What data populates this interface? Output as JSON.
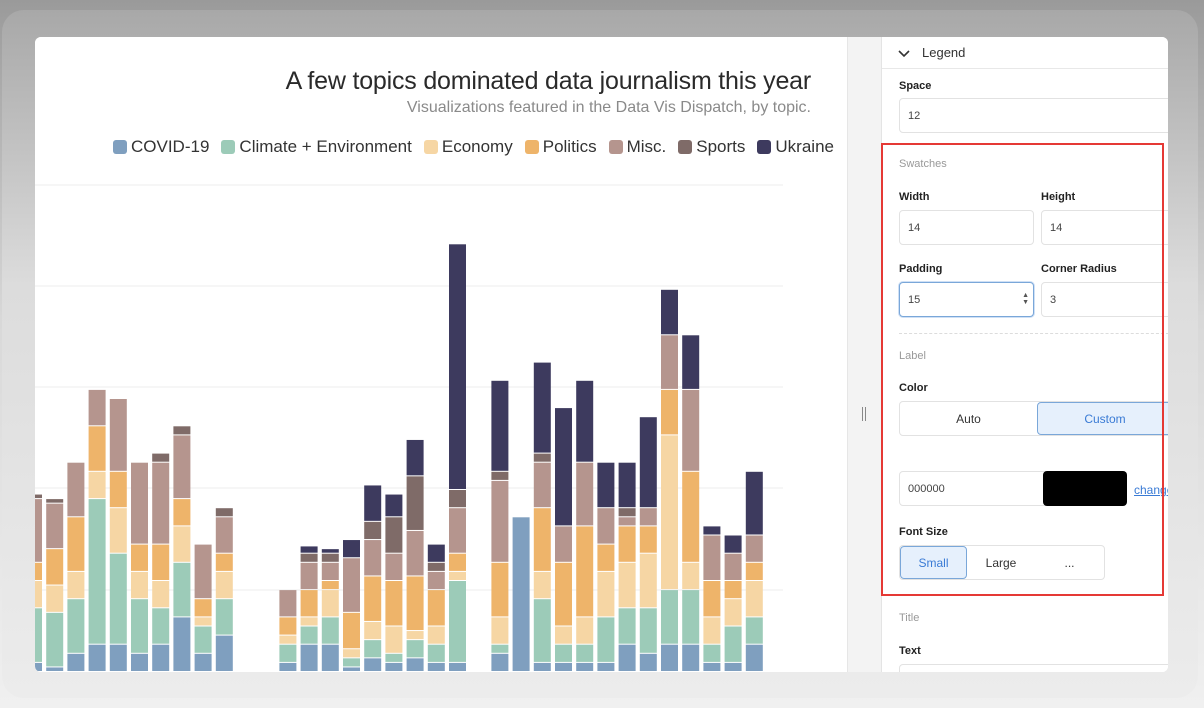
{
  "chart": {
    "title": "A few topics dominated data journalism this year",
    "subtitle": "Visualizations featured in the Data Vis Dispatch, by topic."
  },
  "legend_items": [
    {
      "label": "COVID-19",
      "color": "#7f9fbf"
    },
    {
      "label": "Climate + Environment",
      "color": "#9ccbb8"
    },
    {
      "label": "Economy",
      "color": "#f6d6a4"
    },
    {
      "label": "Politics",
      "color": "#eeb46a"
    },
    {
      "label": "Misc.",
      "color": "#b5958e"
    },
    {
      "label": "Sports",
      "color": "#7f6b68"
    },
    {
      "label": "Ukraine",
      "color": "#3d3a5e"
    }
  ],
  "chart_data": {
    "type": "bar",
    "stacked": true,
    "series_order": [
      "COVID-19",
      "Climate + Environment",
      "Economy",
      "Politics",
      "Misc.",
      "Sports",
      "Ukraine"
    ],
    "bars": [
      [
        1,
        6,
        3,
        2,
        7,
        0.5,
        0
      ],
      [
        0.5,
        6,
        3,
        4,
        5,
        0.5,
        0
      ],
      [
        2,
        6,
        3,
        6,
        6,
        0,
        0
      ],
      [
        3,
        16,
        3,
        5,
        4,
        0,
        0
      ],
      [
        3,
        10,
        5,
        4,
        8,
        0,
        0
      ],
      [
        2,
        6,
        3,
        3,
        9,
        0,
        0
      ],
      [
        3,
        4,
        3,
        4,
        9,
        1,
        0
      ],
      [
        6,
        6,
        4,
        3,
        7,
        1,
        0
      ],
      [
        2,
        3,
        1,
        2,
        6,
        0,
        0
      ],
      [
        4,
        4,
        3,
        2,
        4,
        1,
        0
      ],
      [
        0,
        0,
        0,
        0,
        0,
        0,
        0
      ],
      [
        0,
        0,
        0,
        0,
        0,
        0,
        0
      ],
      [
        1,
        2,
        1,
        2,
        3,
        0,
        0
      ],
      [
        3,
        2,
        1,
        3,
        3,
        1,
        0.8
      ],
      [
        3,
        3,
        3,
        1,
        2,
        1,
        0.5
      ],
      [
        0.5,
        1,
        1,
        4,
        6,
        0,
        2
      ],
      [
        1.5,
        2,
        2,
        5,
        4,
        2,
        4
      ],
      [
        1,
        1,
        3,
        5,
        3,
        4,
        2.5
      ],
      [
        1.5,
        2,
        1,
        6,
        5,
        6,
        4
      ],
      [
        1,
        2,
        2,
        4,
        2,
        1,
        2
      ],
      [
        1,
        9,
        1,
        2,
        5,
        2,
        27
      ],
      [
        0,
        0,
        0,
        0,
        0,
        0,
        0
      ],
      [
        2,
        1,
        3,
        6,
        9,
        1,
        10
      ],
      [
        17,
        0,
        0,
        0,
        0,
        0,
        0
      ],
      [
        1,
        7,
        3,
        7,
        5,
        1,
        10
      ],
      [
        1,
        2,
        2,
        7,
        4,
        0,
        13
      ],
      [
        1,
        2,
        3,
        10,
        7,
        0,
        9
      ],
      [
        1,
        5,
        5,
        3,
        4,
        0,
        5
      ],
      [
        3,
        4,
        5,
        4,
        1,
        1,
        5
      ],
      [
        2,
        5,
        6,
        3,
        2,
        0,
        10
      ],
      [
        3,
        6,
        17,
        5,
        6,
        0,
        5
      ],
      [
        3,
        6,
        3,
        10,
        9,
        0,
        6
      ],
      [
        1,
        2,
        3,
        4,
        5,
        0,
        1
      ],
      [
        1,
        4,
        3,
        2,
        3,
        0,
        2
      ],
      [
        3,
        3,
        4,
        2,
        3,
        0,
        7
      ]
    ]
  },
  "panel": {
    "section_title": "Legend",
    "space_label": "Space",
    "space_value": "12",
    "swatches_label": "Swatches",
    "width_label": "Width",
    "width_value": "14",
    "height_label": "Height",
    "height_value": "14",
    "padding_label": "Padding",
    "padding_value": "15",
    "radius_label": "Corner Radius",
    "radius_value": "3",
    "label_section": "Label",
    "color_label": "Color",
    "color_auto": "Auto",
    "color_custom": "Custom",
    "color_hex": "000000",
    "color_swatch": "#000000",
    "change_link": "change",
    "font_size_label": "Font Size",
    "font_small": "Small",
    "font_large": "Large",
    "font_more": "...",
    "title_section": "Title",
    "text_label": "Text"
  }
}
